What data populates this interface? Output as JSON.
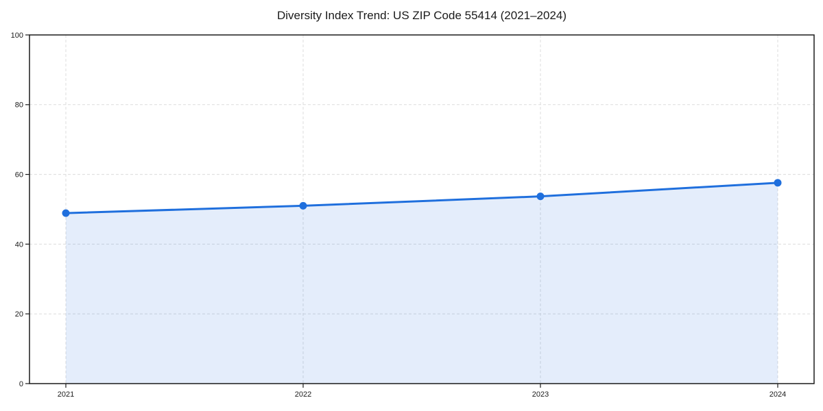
{
  "chart": {
    "title": "Diversity Index Trend: US ZIP Code 55414 (2021–2024)"
  },
  "chart_data": {
    "type": "area",
    "title": "Diversity Index Trend: US ZIP Code 55414 (2021–2024)",
    "categories": [
      "2021",
      "2022",
      "2023",
      "2024"
    ],
    "series": [
      {
        "name": "Diversity Index",
        "values": [
          48.9,
          51.0,
          53.7,
          57.6
        ]
      }
    ],
    "xlabel": "",
    "ylabel": "",
    "ylim": [
      0,
      100
    ],
    "yticks": [
      0,
      20,
      40,
      60,
      80,
      100
    ],
    "grid": true,
    "grid_style": "dashed",
    "legend_position": "none",
    "marker": "circle",
    "colors": {
      "line": "#1f6fdd",
      "marker": "#1f6fdd",
      "fill": "#1f6fdd",
      "fill_opacity": 0.12,
      "grid": "#dcdcdc",
      "axis": "#1a1a1a",
      "tick_label": "#1a1a1a",
      "background": "#ffffff"
    }
  }
}
